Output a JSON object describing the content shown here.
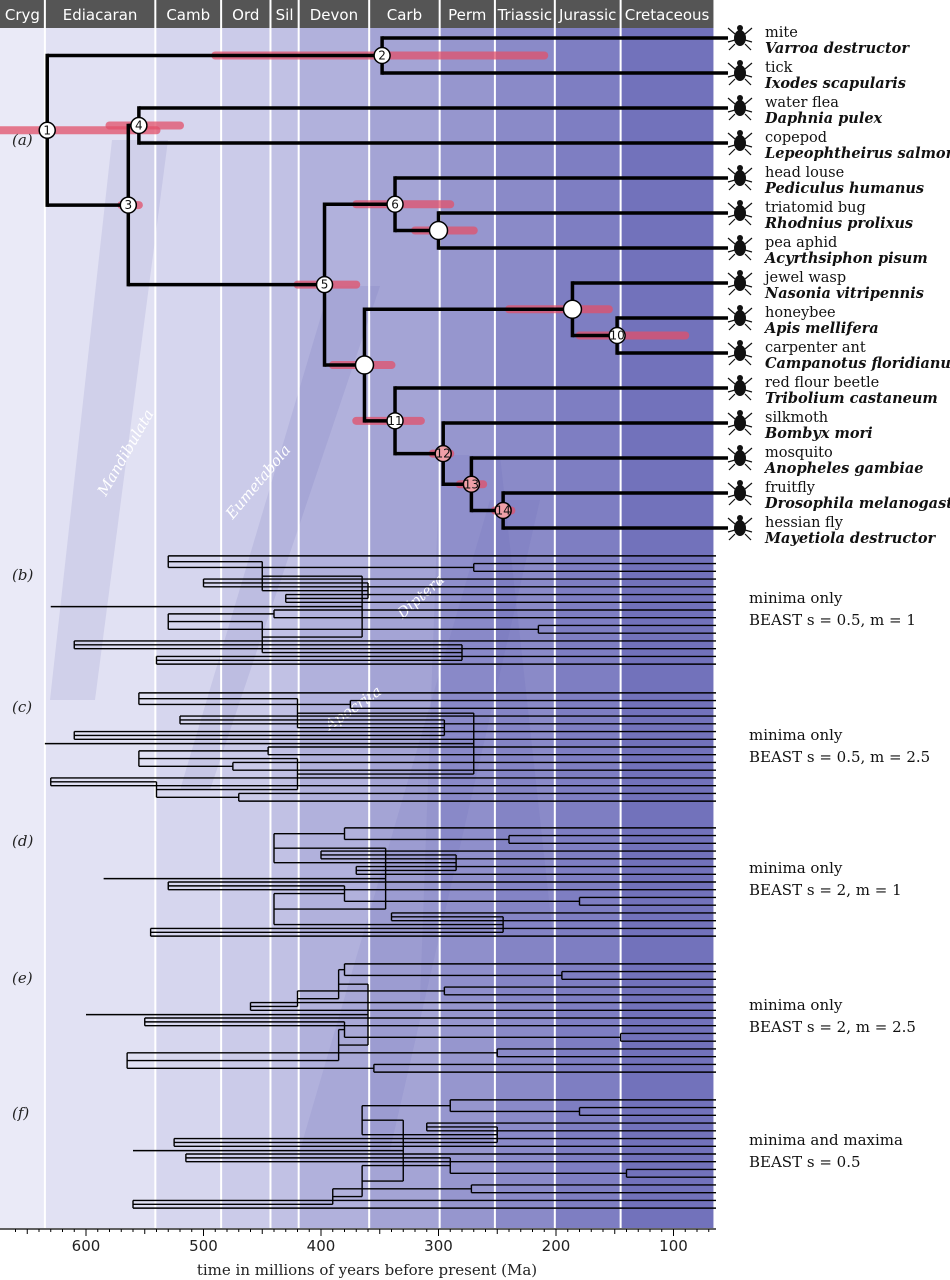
{
  "periods": [
    {
      "name": "Cryg",
      "start": 720,
      "end": 635
    },
    {
      "name": "Ediacaran",
      "start": 635,
      "end": 541
    },
    {
      "name": "Camb",
      "start": 541,
      "end": 485
    },
    {
      "name": "Ord",
      "start": 485,
      "end": 443
    },
    {
      "name": "Sil",
      "start": 443,
      "end": 419
    },
    {
      "name": "Devon",
      "start": 419,
      "end": 359
    },
    {
      "name": "Carb",
      "start": 359,
      "end": 299
    },
    {
      "name": "Perm",
      "start": 299,
      "end": 252
    },
    {
      "name": "Triassic",
      "start": 252,
      "end": 201
    },
    {
      "name": "Jurassic",
      "start": 201,
      "end": 145
    },
    {
      "name": "Cretaceous",
      "start": 145,
      "end": 66
    }
  ],
  "axis": {
    "ticks": [
      "600",
      "500",
      "400",
      "300",
      "200",
      "100"
    ],
    "label": "time in millions of years before present (Ma)"
  },
  "clades": [
    "Mandibulata",
    "Eumetabola",
    "Diptera",
    "Apocrita"
  ],
  "taxa": [
    {
      "common": "mite",
      "species": "Varroa destructor"
    },
    {
      "common": "tick",
      "species": "Ixodes scapularis"
    },
    {
      "common": "water flea",
      "species": "Daphnia pulex"
    },
    {
      "common": "copepod",
      "species": "Lepeophtheirus salmonis"
    },
    {
      "common": "head louse",
      "species": "Pediculus humanus"
    },
    {
      "common": "triatomid bug",
      "species": "Rhodnius prolixus"
    },
    {
      "common": "pea aphid",
      "species": "Acyrthsiphon pisum"
    },
    {
      "common": "jewel wasp",
      "species": "Nasonia vitripennis"
    },
    {
      "common": "honeybee",
      "species": "Apis mellifera"
    },
    {
      "common": "carpenter ant",
      "species": "Campanotus floridianus"
    },
    {
      "common": "red flour beetle",
      "species": "Tribolium castaneum"
    },
    {
      "common": "silkmoth",
      "species": "Bombyx mori"
    },
    {
      "common": "mosquito",
      "species": "Anopheles gambiae"
    },
    {
      "common": "fruitfly",
      "species": "Drosophila melanogaster"
    },
    {
      "common": "hessian fly",
      "species": "Mayetiola destructor"
    }
  ],
  "nodes": [
    {
      "label": "1",
      "age": 633
    },
    {
      "label": "2",
      "age": 348
    },
    {
      "label": "3",
      "age": 564
    },
    {
      "label": "4",
      "age": 555
    },
    {
      "label": "5",
      "age": 397
    },
    {
      "label": "6",
      "age": 337
    },
    {
      "label": "",
      "age": 300
    },
    {
      "label": "",
      "age": 363
    },
    {
      "label": "",
      "age": 186
    },
    {
      "label": "10",
      "age": 148
    },
    {
      "label": "11",
      "age": 337
    },
    {
      "label": "12",
      "age": 296
    },
    {
      "label": "13",
      "age": 272
    },
    {
      "label": "14",
      "age": 245
    }
  ],
  "panels": [
    {
      "letter": "(a)"
    },
    {
      "letter": "(b)",
      "line1": "minima only",
      "line2": "BEAST s = 0.5, m = 1"
    },
    {
      "letter": "(c)",
      "line1": "minima only",
      "line2": "BEAST s = 0.5, m = 2.5"
    },
    {
      "letter": "(d)",
      "line1": "minima only",
      "line2": "BEAST s = 2, m = 1"
    },
    {
      "letter": "(e)",
      "line1": "minima only",
      "line2": "BEAST s = 2, m = 2.5"
    },
    {
      "letter": "(f)",
      "line1": "minima and maxima",
      "line2": "BEAST s = 0.5"
    }
  ],
  "colors": {
    "header": "#555555",
    "bar": "#e2506a",
    "band_light": "#d6d6ee",
    "band_dark": "#7474bc"
  }
}
